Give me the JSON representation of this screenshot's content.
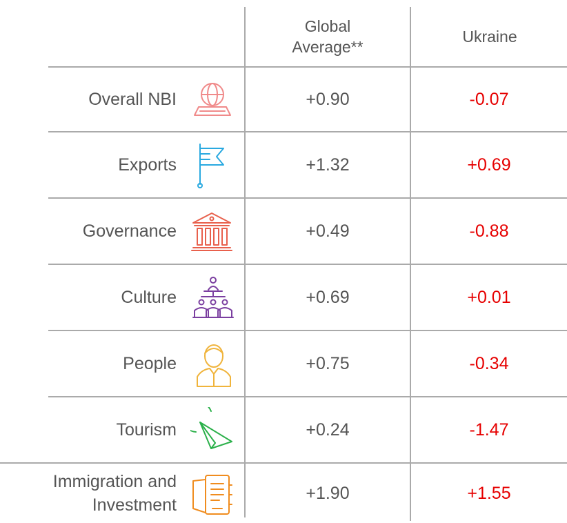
{
  "table": {
    "columns": [
      "Global Average**",
      "Ukraine"
    ],
    "rows": [
      [
        "Overall NBI",
        "+0.90",
        "-0.07"
      ],
      [
        "Exports",
        "+1.32",
        "+0.69"
      ],
      [
        "Governance",
        "+0.49",
        "-0.88"
      ],
      [
        "Culture",
        "+0.69",
        "+0.01"
      ],
      [
        "People",
        "+0.75",
        "-0.34"
      ],
      [
        "Tourism",
        "+0.24",
        "-1.47"
      ],
      [
        "Immigration and Investment",
        "+1.90",
        "+1.55"
      ]
    ]
  }
}
